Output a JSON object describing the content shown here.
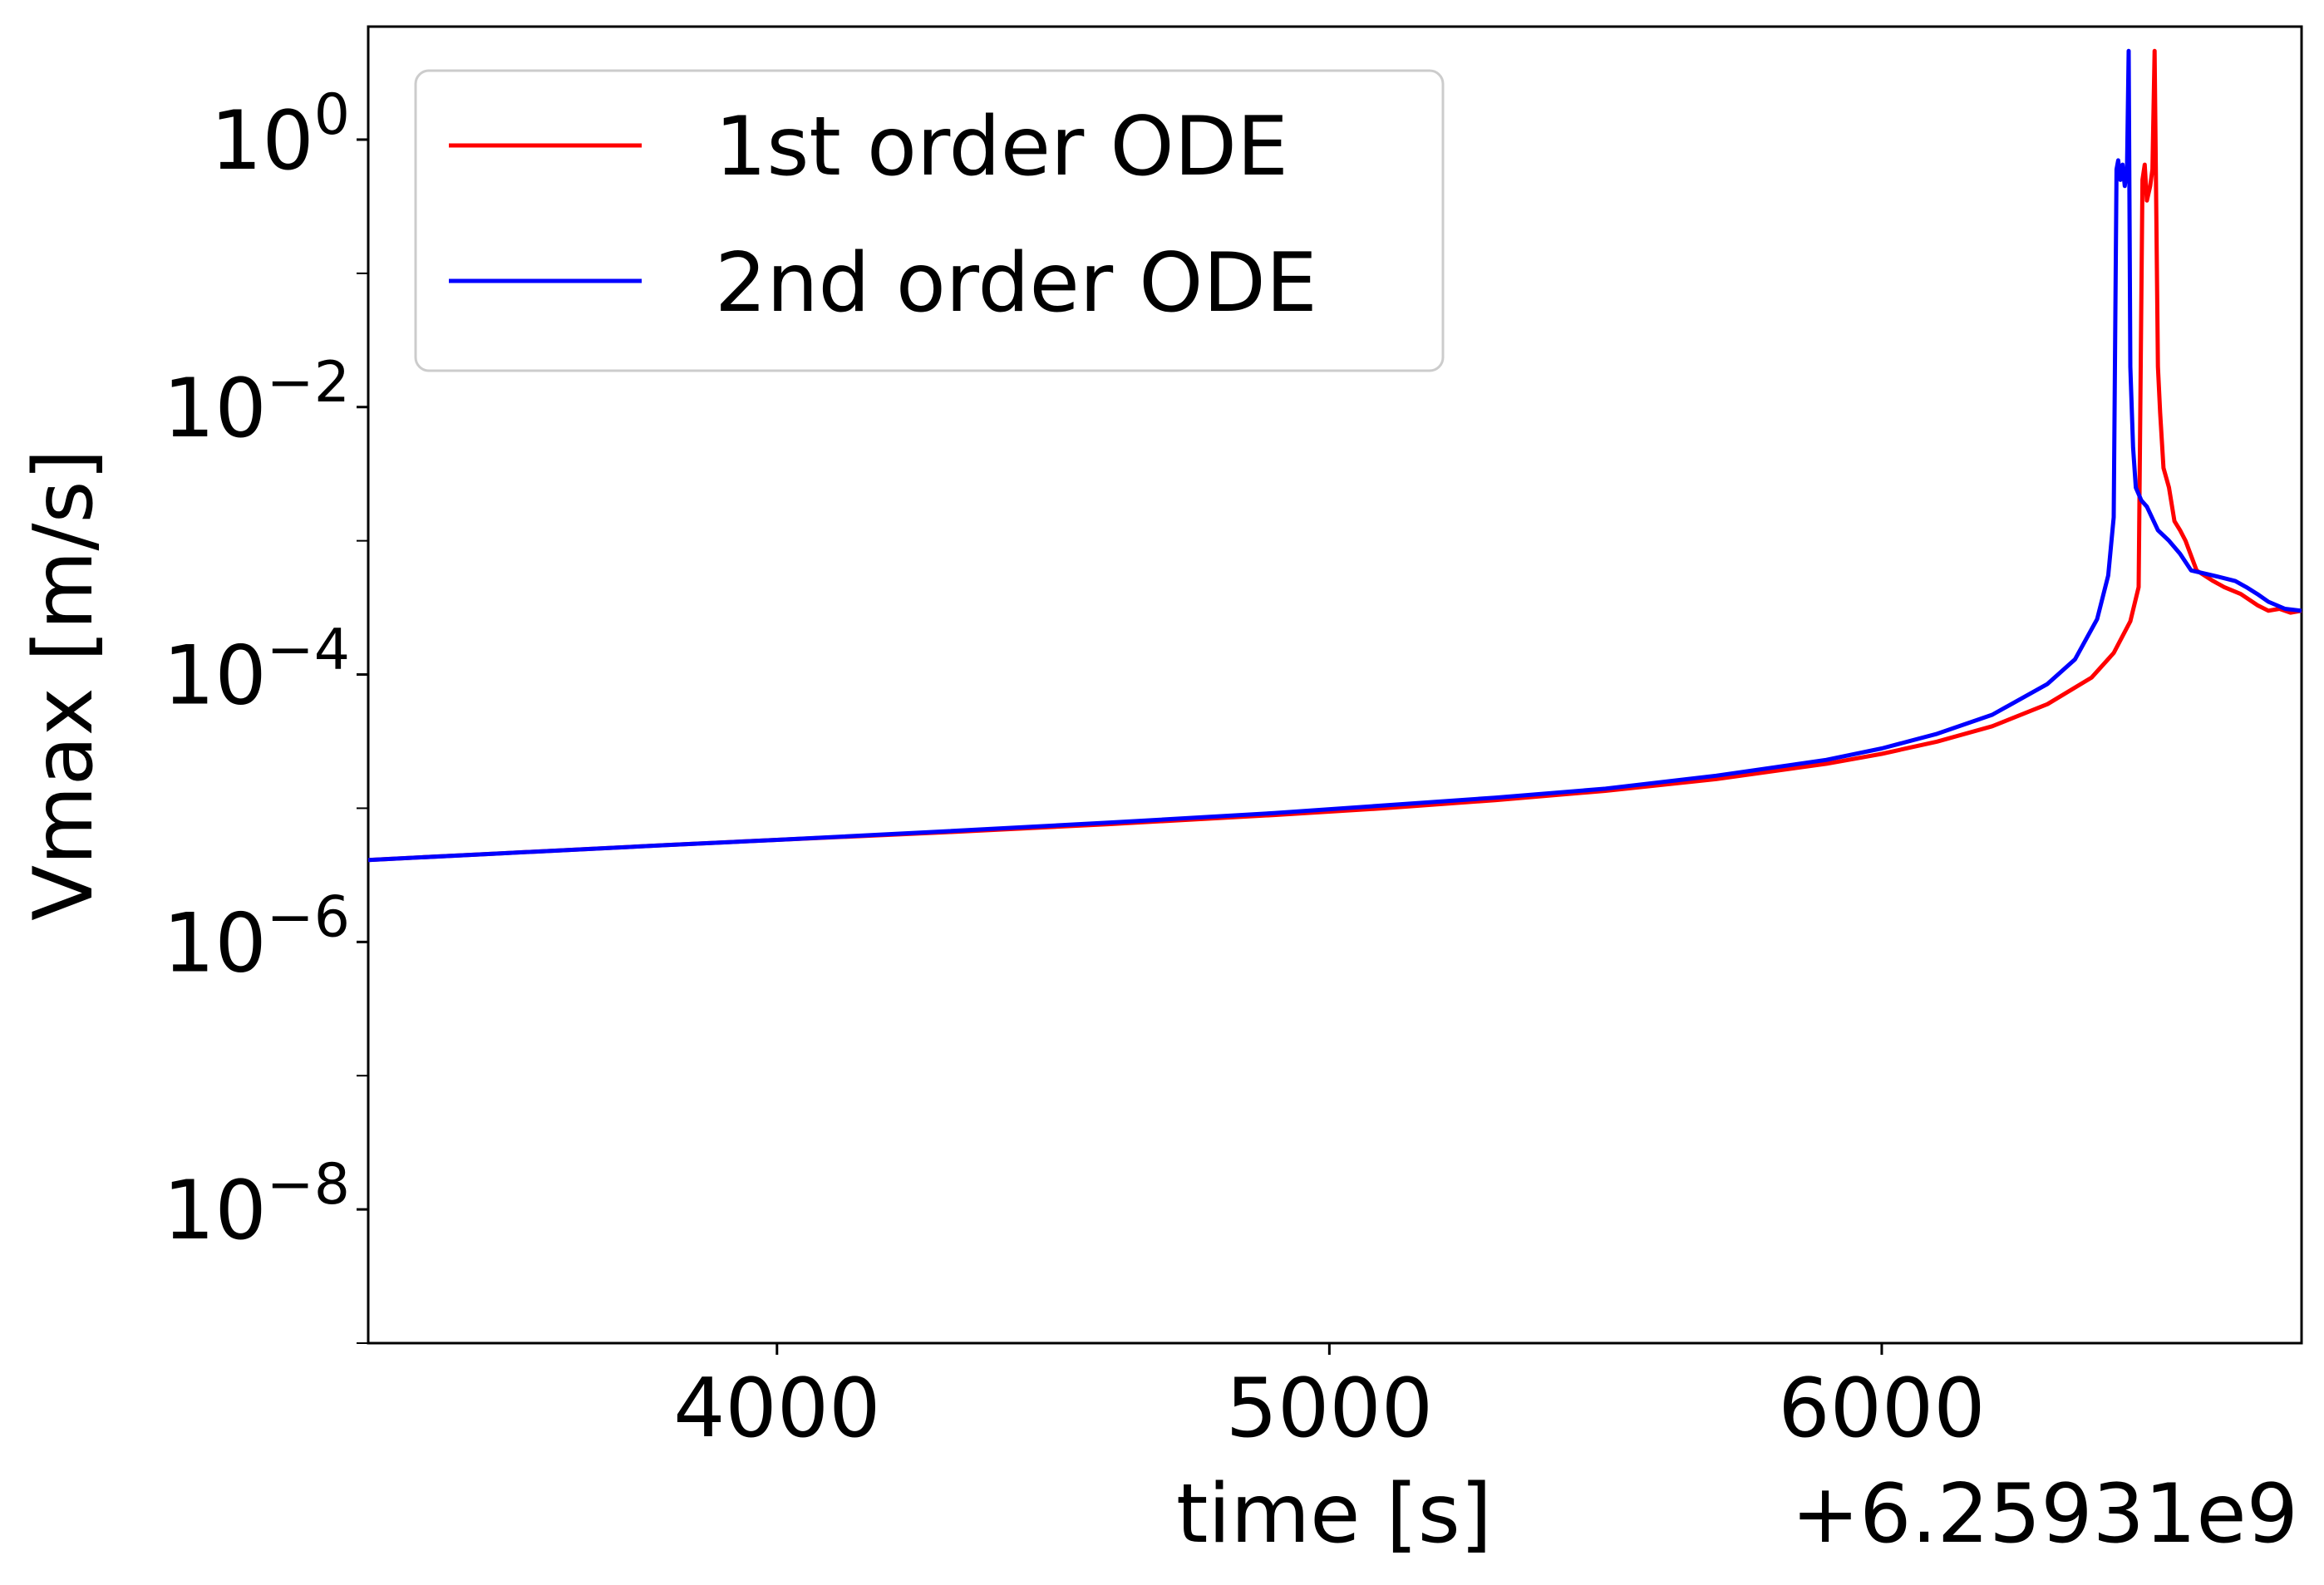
{
  "chart_data": {
    "type": "line",
    "xlabel": "time [s]",
    "ylabel": "Vmax [m/s]",
    "x_offset_label": "+6.25931e9",
    "xlim": [
      3260,
      6760
    ],
    "ylim": [
      1e-09,
      7
    ],
    "yscale": "log",
    "grid": false,
    "legend_position": "top-left",
    "x_ticks": [
      {
        "value": 4000,
        "label": "4000"
      },
      {
        "value": 5000,
        "label": "5000"
      },
      {
        "value": 6000,
        "label": "6000"
      }
    ],
    "y_ticks": [
      {
        "value": 1.0,
        "base": "10",
        "exp": "0"
      },
      {
        "value": 0.01,
        "base": "10",
        "exp": "−2"
      },
      {
        "value": 0.0001,
        "base": "10",
        "exp": "−4"
      },
      {
        "value": 1e-06,
        "base": "10",
        "exp": "−6"
      },
      {
        "value": 1e-08,
        "base": "10",
        "exp": "−8"
      }
    ],
    "series": [
      {
        "name": "1st order ODE",
        "color": "#ff0000",
        "x": [
          3260,
          3500,
          3800,
          4000,
          4300,
          4600,
          4900,
          5100,
          5300,
          5500,
          5700,
          5900,
          6000,
          6100,
          6200,
          6300,
          6380,
          6420,
          6450,
          6465,
          6472,
          6476,
          6480,
          6486,
          6490,
          6494,
          6497,
          6500,
          6504,
          6510,
          6520,
          6530,
          6540,
          6550,
          6570,
          6600,
          6620,
          6650,
          6680,
          6700,
          6720,
          6740,
          6760
        ],
        "y": [
          4.1e-06,
          4.6e-06,
          5.3e-06,
          5.8e-06,
          6.6e-06,
          7.6e-06,
          8.9e-06,
          1e-05,
          1.15e-05,
          1.35e-05,
          1.65e-05,
          2.15e-05,
          2.55e-05,
          3.15e-05,
          4.1e-05,
          6e-05,
          9.5e-05,
          0.000145,
          0.00025,
          0.00045,
          0.5,
          0.65,
          0.35,
          0.45,
          0.6,
          4.6,
          0.3,
          0.02,
          0.009,
          0.0035,
          0.0025,
          0.0014,
          0.0012,
          0.001,
          0.0006,
          0.0005,
          0.00045,
          0.0004,
          0.00033,
          0.0003,
          0.00031,
          0.00029,
          0.0003
        ]
      },
      {
        "name": "2nd order ODE",
        "color": "#0000ff",
        "x": [
          3260,
          3500,
          3800,
          4000,
          4300,
          4600,
          4900,
          5100,
          5300,
          5500,
          5700,
          5900,
          6000,
          6100,
          6200,
          6300,
          6350,
          6390,
          6410,
          6420,
          6425,
          6428,
          6432,
          6436,
          6440,
          6444,
          6447,
          6450,
          6455,
          6460,
          6470,
          6480,
          6500,
          6520,
          6540,
          6560,
          6600,
          6640,
          6660,
          6680,
          6700,
          6730,
          6760
        ],
        "y": [
          4.1e-06,
          4.6e-06,
          5.3e-06,
          5.8e-06,
          6.7e-06,
          7.8e-06,
          9.2e-06,
          1.05e-05,
          1.2e-05,
          1.4e-05,
          1.75e-05,
          2.3e-05,
          2.8e-05,
          3.6e-05,
          5e-05,
          8.5e-05,
          0.00013,
          0.00026,
          0.00055,
          0.0015,
          0.6,
          0.7,
          0.5,
          0.65,
          0.45,
          0.6,
          4.6,
          0.02,
          0.005,
          0.0025,
          0.002,
          0.0018,
          0.0012,
          0.001,
          0.0008,
          0.0006,
          0.00055,
          0.0005,
          0.00045,
          0.0004,
          0.00035,
          0.00031,
          0.0003
        ]
      }
    ]
  }
}
